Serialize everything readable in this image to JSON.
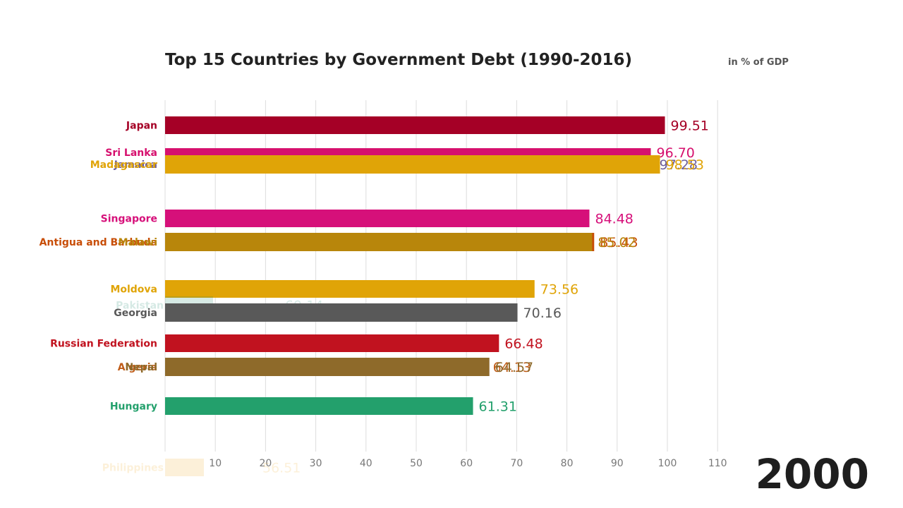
{
  "chart_data": {
    "type": "bar",
    "orientation": "horizontal",
    "title": "Top 15 Countries by Government Debt (1990-2016)",
    "subtitle": "in % of GDP",
    "year": "2000",
    "xlim": [
      0,
      110
    ],
    "ticks": [
      10,
      20,
      30,
      40,
      50,
      60,
      70,
      80,
      90,
      100,
      110
    ],
    "grid": true,
    "bars": [
      {
        "label": "Japan",
        "value": 99.51,
        "value_label": "99.51",
        "color": "#a50026",
        "opacity": 1
      },
      {
        "label": "Sri Lanka",
        "value": 96.7,
        "value_label": "96.70",
        "color": "#d6106e",
        "opacity": 1
      },
      {
        "label": "Jamaica",
        "value": 97.28,
        "value_label": "97.28",
        "color": "#6e5e9a",
        "opacity": 1
      },
      {
        "label": "Madagascar",
        "value": 98.53,
        "value_label": "98.53",
        "color": "#e0a407",
        "opacity": 1
      },
      {
        "label": "Singapore",
        "value": 84.48,
        "value_label": "84.48",
        "color": "#d6107a",
        "opacity": 1
      },
      {
        "label": "Antigua and Barbuda",
        "value": 85.43,
        "value_label": "85.43",
        "color": "#c84e08",
        "opacity": 1
      },
      {
        "label": "Malawi",
        "value": 85.02,
        "value_label": "85.02",
        "color": "#b8860b",
        "opacity": 1
      },
      {
        "label": "Moldova",
        "value": 73.56,
        "value_label": "73.56",
        "color": "#e0a407",
        "opacity": 1
      },
      {
        "label": "Pakistan",
        "value": 69.14,
        "value_label": "69.14",
        "color": "#1f8a70",
        "opacity": 0.18
      },
      {
        "label": "Georgia",
        "value": 70.16,
        "value_label": "70.16",
        "color": "#595959",
        "opacity": 1
      },
      {
        "label": "Russian Federation",
        "value": 66.48,
        "value_label": "66.48",
        "color": "#c1121f",
        "opacity": 1
      },
      {
        "label": "Algeria",
        "value": 64.13,
        "value_label": "64.13",
        "color": "#bf5b17",
        "opacity": 1
      },
      {
        "label": "Nepal",
        "value": 64.57,
        "value_label": "64.57",
        "color": "#8e6a2a",
        "opacity": 1
      },
      {
        "label": "Hungary",
        "value": 61.31,
        "value_label": "61.31",
        "color": "#23a06c",
        "opacity": 1
      },
      {
        "label": "Philippines",
        "value": 56.51,
        "value_label": "56.51",
        "color": "#f4c76b",
        "opacity": 0.25
      }
    ]
  }
}
